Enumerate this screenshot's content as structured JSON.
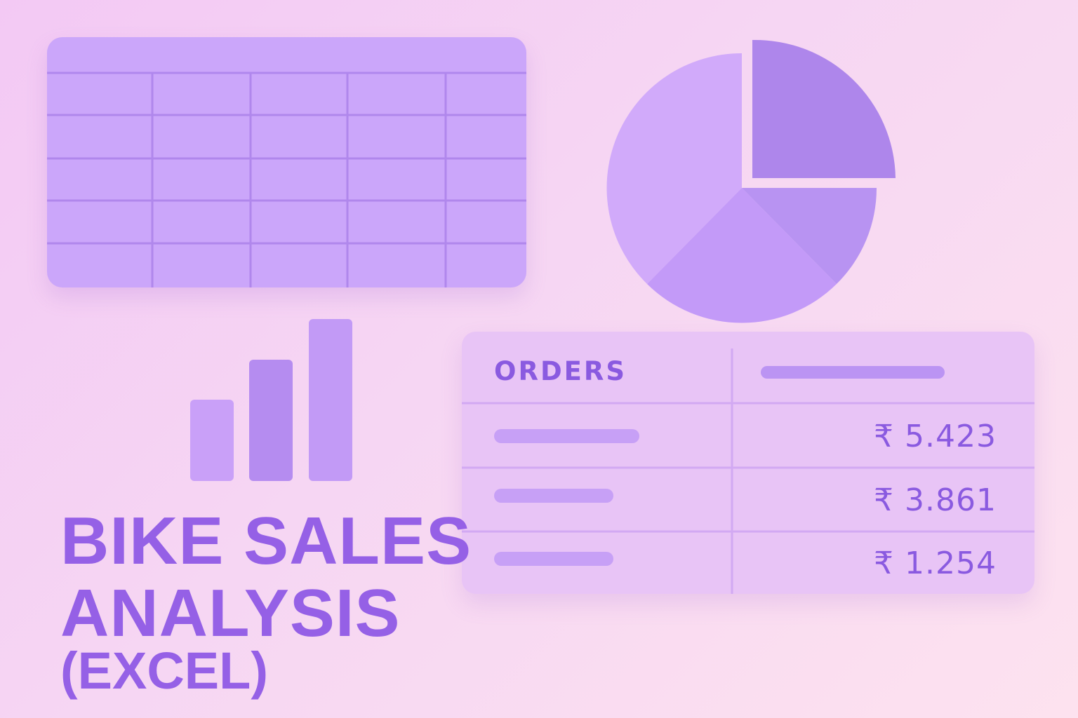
{
  "orders_table": {
    "header": "ORDERS",
    "amounts": [
      "₹ 5.423",
      "₹ 3.861",
      "₹ 1.254"
    ]
  },
  "title": {
    "line1": "BIKE SALES",
    "line2": "ANALYSIS",
    "line3": "(EXCEL)"
  },
  "colors": {
    "accent_text": "#9560e6",
    "spreadsheet_fill": "#cba6fa",
    "pie_light": "#d1aafa",
    "pie_mid": "#c39af8",
    "pie_dark": "#b08aec",
    "bar_light": "#c9a0f8",
    "bar_dark": "#b58cf0",
    "panel_fill": "#e8c4f6"
  },
  "icons": [
    "spreadsheet-grid-icon",
    "pie-chart-icon",
    "bar-chart-icon"
  ]
}
